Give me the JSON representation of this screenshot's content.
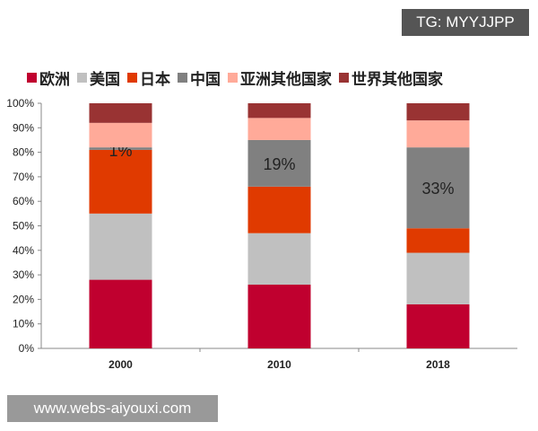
{
  "watermark_top": "TG: MYYJJPP",
  "watermark_bottom": "www.webs-aiyouxi.com",
  "chart_data": {
    "type": "bar",
    "stacked": true,
    "categories": [
      "2000",
      "2010",
      "2018"
    ],
    "ylim": [
      0,
      100
    ],
    "yticks": [
      "0%",
      "10%",
      "20%",
      "30%",
      "40%",
      "50%",
      "60%",
      "70%",
      "80%",
      "90%",
      "100%"
    ],
    "legend_position": "top",
    "grid": false,
    "series": [
      {
        "name": "欧洲",
        "color": "#c0002f",
        "values": [
          28,
          26,
          18
        ]
      },
      {
        "name": "美国",
        "color": "#c0c0c0",
        "values": [
          27,
          21,
          21
        ]
      },
      {
        "name": "日本",
        "color": "#e03a00",
        "values": [
          26,
          19,
          10
        ]
      },
      {
        "name": "中国",
        "color": "#808080",
        "values": [
          1,
          19,
          33
        ]
      },
      {
        "name": "亚洲其他国家",
        "color": "#ffaa99",
        "values": [
          10,
          9,
          11
        ]
      },
      {
        "name": "世界其他国家",
        "color": "#993333",
        "values": [
          8,
          6,
          7
        ]
      }
    ],
    "annotations": [
      {
        "category": "2000",
        "series": "中国",
        "text": "1%"
      },
      {
        "category": "2010",
        "series": "中国",
        "text": "19%"
      },
      {
        "category": "2018",
        "series": "中国",
        "text": "33%"
      }
    ]
  }
}
